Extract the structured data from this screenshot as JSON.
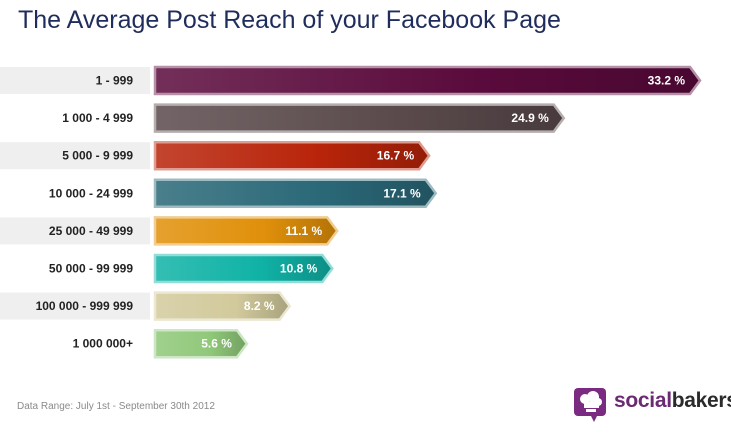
{
  "title": "The Average Post Reach of your Facebook Page",
  "footer_note": "Data Range: July 1st - September 30th 2012",
  "brand": {
    "part1": "social",
    "part2": "bakers"
  },
  "chart_data": {
    "type": "bar",
    "orientation": "horizontal",
    "title": "The Average Post Reach of your Facebook Page",
    "categories": [
      "1 - 999",
      "1 000 - 4 999",
      "5 000 - 9 999",
      "10 000 - 24 999",
      "25 000 - 49 999",
      "50 000 - 99 999",
      "100 000 - 999 999",
      "1 000 000+"
    ],
    "values": [
      33.2,
      24.9,
      16.7,
      17.1,
      11.1,
      10.8,
      8.2,
      5.6
    ],
    "labels": [
      "33.2 %",
      "24.9 %",
      "16.7 %",
      "17.1 %",
      "11.1 %",
      "10.8 %",
      "8.2 %",
      "5.6 %"
    ],
    "colors": [
      "#5a0a3c",
      "#5a4a4c",
      "#b8240a",
      "#2a6878",
      "#e0900a",
      "#10b2a6",
      "#d2ca9c",
      "#90c87a"
    ],
    "xlim": [
      0,
      33.2
    ],
    "grid": false,
    "legend": "none"
  }
}
